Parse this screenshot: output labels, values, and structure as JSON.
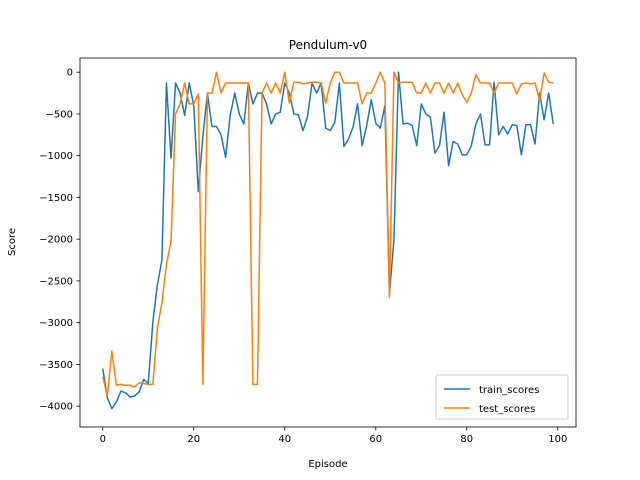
{
  "chart_data": {
    "type": "line",
    "title": "Pendulum-v0",
    "xlabel": "Episode",
    "ylabel": "Score",
    "xlim": [
      -5,
      104
    ],
    "ylim": [
      -4250,
      170
    ],
    "xticks": [
      0,
      20,
      40,
      60,
      80,
      100
    ],
    "yticks": [
      0,
      -500,
      -1000,
      -1500,
      -2000,
      -2500,
      -3000,
      -3500,
      -4000
    ],
    "legend_position": "lower-right",
    "grid": false,
    "series": [
      {
        "name": "train_scores",
        "color": "#1f77b4",
        "x": [
          0,
          1,
          2,
          3,
          4,
          5,
          6,
          7,
          8,
          9,
          10,
          11,
          12,
          13,
          14,
          15,
          16,
          17,
          18,
          19,
          20,
          21,
          22,
          23,
          24,
          25,
          26,
          27,
          28,
          29,
          30,
          31,
          32,
          33,
          34,
          35,
          36,
          37,
          38,
          39,
          40,
          41,
          42,
          43,
          44,
          45,
          46,
          47,
          48,
          49,
          50,
          51,
          52,
          53,
          54,
          55,
          56,
          57,
          58,
          59,
          60,
          61,
          62,
          63,
          64,
          65,
          66,
          67,
          68,
          69,
          70,
          71,
          72,
          73,
          74,
          75,
          76,
          77,
          78,
          79,
          80,
          81,
          82,
          83,
          84,
          85,
          86,
          87,
          88,
          89,
          90,
          91,
          92,
          93,
          94,
          95,
          96,
          97,
          98,
          99
        ],
        "values": [
          -3550,
          -3900,
          -4030,
          -3950,
          -3820,
          -3840,
          -3890,
          -3880,
          -3830,
          -3680,
          -3730,
          -3000,
          -2550,
          -2250,
          -130,
          -1030,
          -130,
          -250,
          -520,
          -130,
          -400,
          -1430,
          -770,
          -250,
          -650,
          -650,
          -750,
          -1020,
          -520,
          -250,
          -500,
          -620,
          -130,
          -380,
          -250,
          -250,
          -380,
          -620,
          -500,
          -480,
          -130,
          -250,
          -500,
          -510,
          -700,
          -530,
          -130,
          -250,
          -130,
          -670,
          -700,
          -600,
          -130,
          -890,
          -800,
          -660,
          -380,
          -880,
          -640,
          -330,
          -610,
          -670,
          -400,
          -2660,
          -2000,
          0,
          -620,
          -610,
          -640,
          -880,
          -380,
          -500,
          -540,
          -970,
          -880,
          -480,
          -1120,
          -830,
          -860,
          -990,
          -990,
          -880,
          -620,
          -500,
          -870,
          -870,
          -120,
          -750,
          -650,
          -740,
          -630,
          -640,
          -990,
          -630,
          -630,
          -860,
          -250,
          -570,
          -250,
          -620
        ]
      },
      {
        "name": "test_scores",
        "color": "#ff7f0e",
        "x": [
          0,
          1,
          2,
          3,
          4,
          5,
          6,
          7,
          8,
          9,
          10,
          11,
          12,
          13,
          14,
          15,
          16,
          17,
          18,
          19,
          20,
          21,
          22,
          23,
          24,
          25,
          26,
          27,
          28,
          29,
          30,
          31,
          32,
          33,
          34,
          35,
          36,
          37,
          38,
          39,
          40,
          41,
          42,
          43,
          44,
          45,
          46,
          47,
          48,
          49,
          50,
          51,
          52,
          53,
          54,
          55,
          56,
          57,
          58,
          59,
          60,
          61,
          62,
          63,
          64,
          65,
          66,
          67,
          68,
          69,
          70,
          71,
          72,
          73,
          74,
          75,
          76,
          77,
          78,
          79,
          80,
          81,
          82,
          83,
          84,
          85,
          86,
          87,
          88,
          89,
          90,
          91,
          92,
          93,
          94,
          95,
          96,
          97,
          98,
          99
        ],
        "values": [
          -3650,
          -3880,
          -3340,
          -3750,
          -3740,
          -3750,
          -3750,
          -3770,
          -3720,
          -3730,
          -3740,
          -3740,
          -3070,
          -2760,
          -2300,
          -2030,
          -500,
          -380,
          -130,
          -380,
          -380,
          -260,
          -3740,
          -250,
          -250,
          0,
          -250,
          -130,
          -130,
          -130,
          -130,
          -130,
          -130,
          -3740,
          -3740,
          -250,
          -130,
          -250,
          -130,
          -250,
          0,
          -370,
          -120,
          -120,
          -140,
          -130,
          -120,
          -120,
          -130,
          -370,
          -130,
          0,
          0,
          -130,
          -130,
          -130,
          -130,
          -380,
          -250,
          -250,
          -130,
          0,
          -130,
          -2700,
          0,
          -130,
          -120,
          -120,
          -120,
          -250,
          -250,
          -130,
          -250,
          -130,
          -130,
          -250,
          -130,
          -250,
          -130,
          -270,
          -360,
          -250,
          -30,
          -130,
          -130,
          -130,
          -250,
          -130,
          -130,
          -130,
          -130,
          -260,
          -140,
          -130,
          -140,
          -130,
          -340,
          -10,
          -120,
          -130
        ]
      }
    ]
  }
}
